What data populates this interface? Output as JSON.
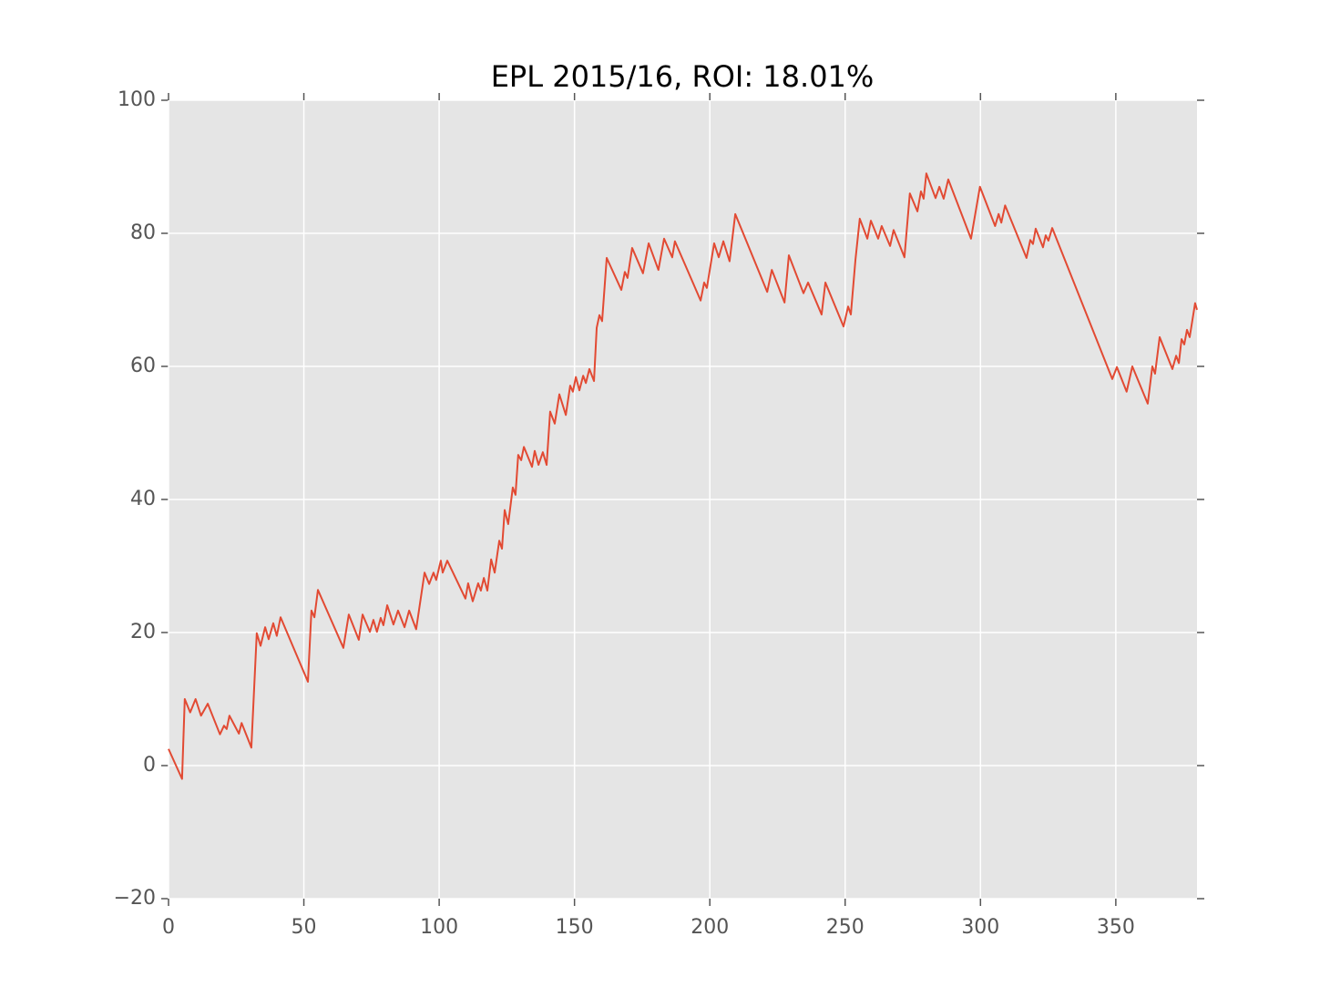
{
  "chart_data": {
    "type": "line",
    "title": "EPL 2015/16, ROI: 18.01%",
    "x": [
      0,
      5,
      6,
      8,
      10,
      12,
      14.5,
      19,
      20.5,
      21.5,
      22.5,
      26,
      27,
      30.6,
      32.6,
      34,
      35.7,
      37,
      38.7,
      40,
      41.4,
      51.5,
      52.8,
      53.9,
      55.2,
      64.6,
      66.6,
      70.3,
      71.7,
      74.4,
      75.7,
      77,
      78.4,
      79.4,
      80.8,
      83.1,
      84.8,
      87.2,
      88.9,
      91.5,
      94.6,
      96.3,
      97.9,
      98.9,
      100.6,
      101.3,
      103,
      109.7,
      110.7,
      112.4,
      114.4,
      115.4,
      116.5,
      117.8,
      119.2,
      120.5,
      122.2,
      123.2,
      124.2,
      125.5,
      127.2,
      128.2,
      129.2,
      130.3,
      131.3,
      134.3,
      135.3,
      136.7,
      138.3,
      139.7,
      141,
      142.7,
      144.4,
      146.8,
      148.4,
      149.4,
      150.5,
      151.8,
      153.2,
      154.2,
      155.5,
      157.2,
      158.2,
      159.2,
      160.2,
      161.9,
      167.3,
      168.6,
      169.6,
      171.3,
      175.3,
      177.4,
      181,
      183.1,
      186.1,
      187.1,
      196.6,
      197.9,
      198.9,
      201.6,
      203.3,
      205,
      207.3,
      209.4,
      221.2,
      222.9,
      227.6,
      229.2,
      234.6,
      236.3,
      241.3,
      242.7,
      249.4,
      251.1,
      252.1,
      253.8,
      255.4,
      258.2,
      259.5,
      262.2,
      263.5,
      266.6,
      267.9,
      271.9,
      273.9,
      276.7,
      278,
      279,
      280,
      283.4,
      284.8,
      286.4,
      288.1,
      296.5,
      299.8,
      305.4,
      306.7,
      307.7,
      309.1,
      317,
      318.4,
      319.4,
      320.4,
      323.1,
      324.1,
      325.1,
      326.5,
      348.7,
      350.4,
      354,
      356.1,
      361.8,
      363.5,
      364.5,
      366.2,
      370.9,
      372.3,
      373.3,
      374.3,
      375.3,
      376.3,
      377.3,
      379.3,
      380
    ],
    "series": [
      {
        "color": "#e24a33",
        "values": [
          2.5,
          -2,
          10,
          8,
          10,
          7.5,
          9.3,
          4.7,
          6,
          5.5,
          7.5,
          4.8,
          6.4,
          2.7,
          19.9,
          18,
          20.8,
          19,
          21.4,
          19.5,
          22.3,
          12.6,
          23.3,
          22.3,
          26.4,
          17.7,
          22.7,
          18.9,
          22.7,
          20.1,
          21.9,
          20.1,
          22.2,
          21.1,
          24.1,
          21.2,
          23.3,
          20.8,
          23.3,
          20.5,
          29,
          27.3,
          29,
          27.9,
          30.8,
          29,
          30.8,
          25.1,
          27.4,
          24.7,
          27.4,
          26.3,
          28.2,
          26.3,
          31,
          29,
          33.8,
          32.6,
          38.4,
          36.3,
          41.8,
          40.7,
          46.7,
          45.9,
          47.9,
          44.9,
          47.3,
          45.2,
          47.1,
          45.2,
          53.2,
          51.4,
          55.8,
          52.7,
          57.1,
          56.2,
          58.4,
          56.4,
          58.6,
          57.5,
          59.6,
          57.8,
          65.8,
          67.7,
          66.8,
          76.3,
          71.5,
          74.2,
          73.3,
          77.8,
          74,
          78.5,
          74.5,
          79.2,
          76.4,
          78.8,
          69.9,
          72.6,
          71.8,
          78.5,
          76.4,
          78.8,
          75.8,
          82.9,
          71.2,
          74.5,
          69.6,
          76.7,
          71,
          72.6,
          67.8,
          72.6,
          66,
          69,
          67.8,
          76,
          82.2,
          79.2,
          81.9,
          79.2,
          81.1,
          78.1,
          80.5,
          76.4,
          86,
          83.3,
          86.3,
          85.2,
          89,
          85.3,
          87,
          85.2,
          88.1,
          79.2,
          87,
          81.1,
          82.9,
          81.6,
          84.2,
          76.3,
          79,
          78.4,
          80.7,
          77.9,
          79.7,
          78.9,
          80.8,
          58.1,
          59.9,
          56.2,
          60,
          54.4,
          60,
          58.9,
          64.4,
          59.6,
          61.6,
          60.5,
          64.1,
          63.3,
          65.5,
          64.4,
          69.5,
          68.5
        ]
      }
    ],
    "xlim": [
      0,
      380
    ],
    "xticks": [
      0,
      50,
      100,
      150,
      200,
      250,
      300,
      350
    ],
    "ylim": [
      -20,
      100
    ],
    "yticks": [
      {
        "value": -20,
        "label": "−20"
      },
      0,
      20,
      40,
      60,
      80,
      100
    ],
    "grid": true
  }
}
